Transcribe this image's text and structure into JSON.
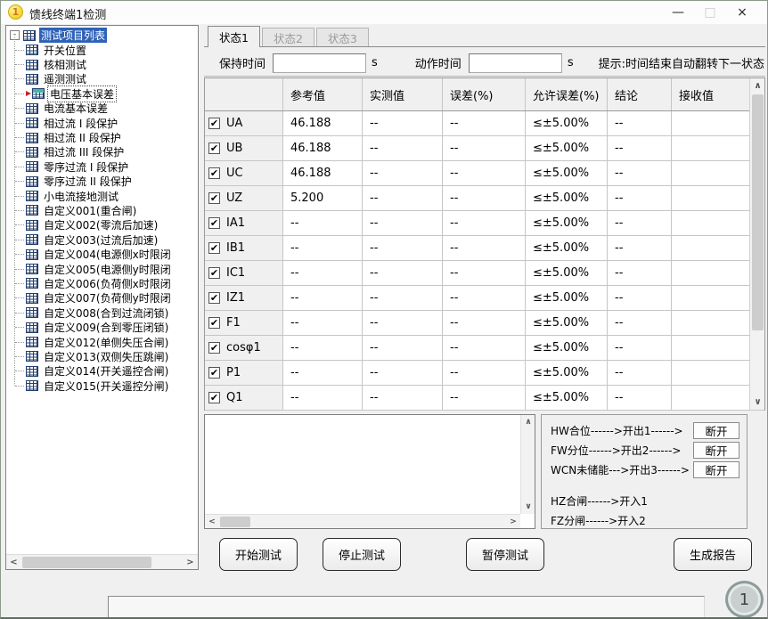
{
  "window": {
    "title": "馈线终端1检测",
    "icon_text": "1",
    "controls": {
      "minimize": "—",
      "maximize": "□",
      "close": "×"
    }
  },
  "icons": {
    "scroll_up": "∧",
    "scroll_down": "∨",
    "scroll_left": "<",
    "scroll_right": ">",
    "expander_collapse": "-",
    "check": "✔"
  },
  "tree": {
    "root": "测试项目列表",
    "items": [
      {
        "label": "开关位置"
      },
      {
        "label": "核相测试"
      },
      {
        "label": "遥测测试"
      },
      {
        "label": "电压基本误差",
        "focused": true
      },
      {
        "label": "电流基本误差"
      },
      {
        "label": "相过流 I 段保护"
      },
      {
        "label": "相过流 II 段保护"
      },
      {
        "label": "相过流 III 段保护"
      },
      {
        "label": "零序过流 I 段保护"
      },
      {
        "label": "零序过流 II 段保护"
      },
      {
        "label": "小电流接地测试"
      },
      {
        "label": "自定义001(重合闸)"
      },
      {
        "label": "自定义002(零流后加速)"
      },
      {
        "label": "自定义003(过流后加速)"
      },
      {
        "label": "自定义004(电源侧x时限闭"
      },
      {
        "label": "自定义005(电源侧y时限闭"
      },
      {
        "label": "自定义006(负荷侧x时限闭"
      },
      {
        "label": "自定义007(负荷侧y时限闭"
      },
      {
        "label": "自定义008(合到过流闭锁)"
      },
      {
        "label": "自定义009(合到零压闭锁)"
      },
      {
        "label": "自定义012(单侧失压合闸)"
      },
      {
        "label": "自定义013(双侧失压跳闸)"
      },
      {
        "label": "自定义014(开关遥控合闸)"
      },
      {
        "label": "自定义015(开关遥控分闸)"
      }
    ]
  },
  "tabs": [
    {
      "label": "状态1",
      "active": true
    },
    {
      "label": "状态2",
      "active": false
    },
    {
      "label": "状态3",
      "active": false
    }
  ],
  "controls": {
    "hold_time_label": "保持时间",
    "hold_time_value": "",
    "action_time_label": "动作时间",
    "action_time_value": "",
    "seconds_unit": "s",
    "hint": "提示:时间结束自动翻转下一状态"
  },
  "table": {
    "headers": [
      "",
      "参考值",
      "实测值",
      "误差(%)",
      "允许误差(%)",
      "结论",
      "接收值"
    ],
    "rows": [
      {
        "name": "UA",
        "checked": true,
        "ref": "46.188",
        "measured": "--",
        "error": "--",
        "allowed": "≤±5.00%",
        "conclusion": "--",
        "received": ""
      },
      {
        "name": "UB",
        "checked": true,
        "ref": "46.188",
        "measured": "--",
        "error": "--",
        "allowed": "≤±5.00%",
        "conclusion": "--",
        "received": ""
      },
      {
        "name": "UC",
        "checked": true,
        "ref": "46.188",
        "measured": "--",
        "error": "--",
        "allowed": "≤±5.00%",
        "conclusion": "--",
        "received": ""
      },
      {
        "name": "UZ",
        "checked": true,
        "ref": "5.200",
        "measured": "--",
        "error": "--",
        "allowed": "≤±5.00%",
        "conclusion": "--",
        "received": ""
      },
      {
        "name": "IA1",
        "checked": true,
        "ref": "--",
        "measured": "--",
        "error": "--",
        "allowed": "≤±5.00%",
        "conclusion": "--",
        "received": ""
      },
      {
        "name": "IB1",
        "checked": true,
        "ref": "--",
        "measured": "--",
        "error": "--",
        "allowed": "≤±5.00%",
        "conclusion": "--",
        "received": ""
      },
      {
        "name": "IC1",
        "checked": true,
        "ref": "--",
        "measured": "--",
        "error": "--",
        "allowed": "≤±5.00%",
        "conclusion": "--",
        "received": ""
      },
      {
        "name": "IZ1",
        "checked": true,
        "ref": "--",
        "measured": "--",
        "error": "--",
        "allowed": "≤±5.00%",
        "conclusion": "--",
        "received": ""
      },
      {
        "name": "F1",
        "checked": true,
        "ref": "--",
        "measured": "--",
        "error": "--",
        "allowed": "≤±5.00%",
        "conclusion": "--",
        "received": ""
      },
      {
        "name": "cosφ1",
        "checked": true,
        "ref": "--",
        "measured": "--",
        "error": "--",
        "allowed": "≤±5.00%",
        "conclusion": "--",
        "received": ""
      },
      {
        "name": "P1",
        "checked": true,
        "ref": "--",
        "measured": "--",
        "error": "--",
        "allowed": "≤±5.00%",
        "conclusion": "--",
        "received": ""
      },
      {
        "name": "Q1",
        "checked": true,
        "ref": "--",
        "measured": "--",
        "error": "--",
        "allowed": "≤±5.00%",
        "conclusion": "--",
        "received": ""
      }
    ]
  },
  "io_panel": {
    "lines": [
      {
        "text": "HW合位------>开出1------>",
        "value": "断开"
      },
      {
        "text": "FW分位------>开出2------>",
        "value": "断开"
      },
      {
        "text": "WCN未储能--->开出3------>",
        "value": "断开"
      },
      {
        "text": "HZ合闸------>开入1",
        "value": null,
        "gap": true
      },
      {
        "text": "FZ分闸------>开入2",
        "value": null
      }
    ]
  },
  "buttons": [
    {
      "label": "开始测试"
    },
    {
      "label": "停止测试"
    },
    {
      "label": "暂停测试"
    },
    {
      "label": "生成报告"
    }
  ],
  "badge": "1"
}
